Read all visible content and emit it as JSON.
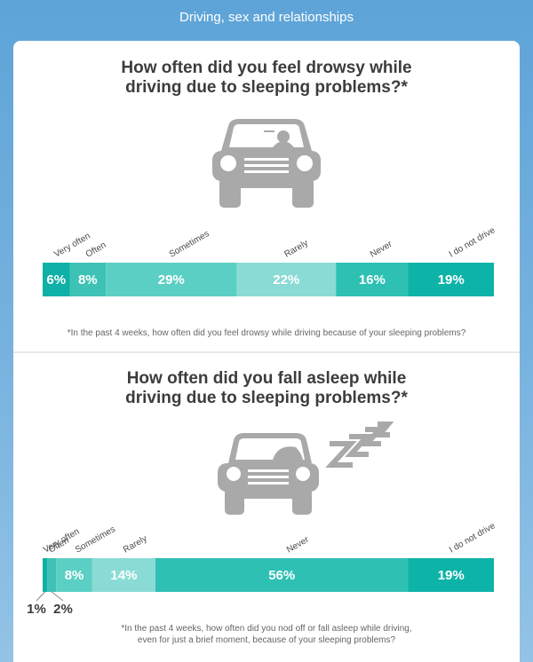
{
  "header": {
    "title": "Driving, sex and relationships"
  },
  "sections": [
    {
      "title_line1": "How often did you feel drowsy while",
      "title_line2": "driving due to sleeping problems?*",
      "footnote_line1": "*In the past 4 weeks, how often did you feel drowsy while driving because of your sleeping problems?",
      "footnote_line2": "",
      "car_icon": "drowsy-car-icon"
    },
    {
      "title_line1": "How often did you fall asleep while",
      "title_line2": "driving due to sleeping problems?*",
      "footnote_line1": "*In the past 4 weeks, how often did you nod off or fall asleep while driving,",
      "footnote_line2": "even for just a brief moment, because of your sleeping problems?",
      "car_icon": "sleeping-car-icon"
    }
  ],
  "chart_data": [
    {
      "type": "bar",
      "orientation": "horizontal-stacked",
      "categories": [
        "Very often",
        "Often",
        "Sometimes",
        "Rarely",
        "Never",
        "I do not drive"
      ],
      "values": [
        6,
        8,
        29,
        22,
        16,
        19
      ],
      "labels": [
        "6%",
        "8%",
        "29%",
        "22%",
        "16%",
        "19%"
      ],
      "colors": [
        "#0fb0a6",
        "#3ec2b6",
        "#5ccfc5",
        "#8adbd5",
        "#2ec0b3",
        "#0eb3a8"
      ]
    },
    {
      "type": "bar",
      "orientation": "horizontal-stacked",
      "categories": [
        "Very often",
        "Often",
        "Sometimes",
        "Rarely",
        "Never",
        "I do not drive"
      ],
      "values": [
        1,
        2,
        8,
        14,
        56,
        19
      ],
      "labels": [
        "1%",
        "2%",
        "8%",
        "14%",
        "56%",
        "19%"
      ],
      "colors": [
        "#0fb0a6",
        "#3ec2b6",
        "#5ccfc5",
        "#8adbd5",
        "#2ec0b3",
        "#0eb3a8"
      ]
    }
  ]
}
